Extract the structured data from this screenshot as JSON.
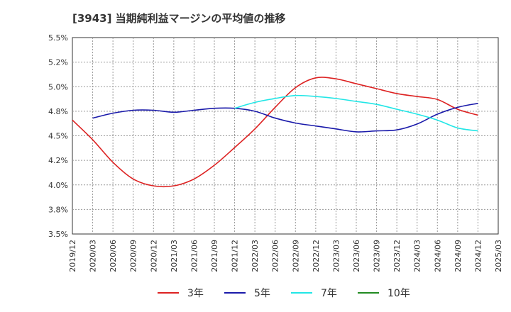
{
  "chart_data": {
    "type": "line",
    "title": "[3943]  当期純利益マージンの平均値の推移",
    "xlabel": "",
    "ylabel": "",
    "x_ticks": [
      "2019/12",
      "2020/03",
      "2020/06",
      "2020/09",
      "2020/12",
      "2021/03",
      "2021/06",
      "2021/09",
      "2021/12",
      "2022/03",
      "2022/06",
      "2022/09",
      "2022/12",
      "2023/03",
      "2023/06",
      "2023/09",
      "2023/12",
      "2024/03",
      "2024/06",
      "2024/09",
      "2024/12",
      "2025/03"
    ],
    "y_ticks": [
      "3.5%",
      "3.8%",
      "4.0%",
      "4.2%",
      "4.5%",
      "4.8%",
      "5.0%",
      "5.2%",
      "5.5%"
    ],
    "ylim": [
      3.5,
      5.5
    ],
    "grid": true,
    "legend_position": "bottom",
    "series": [
      {
        "name": "3年",
        "color": "#dd2222",
        "x": [
          "2019/12",
          "2020/03",
          "2020/06",
          "2020/09",
          "2020/12",
          "2021/03",
          "2021/06",
          "2021/09",
          "2021/12",
          "2022/03",
          "2022/06",
          "2022/09",
          "2022/12",
          "2023/03",
          "2023/06",
          "2023/09",
          "2023/12",
          "2024/03",
          "2024/06",
          "2024/09",
          "2024/12"
        ],
        "values": [
          4.66,
          4.46,
          4.23,
          4.06,
          3.99,
          3.99,
          4.06,
          4.2,
          4.38,
          4.57,
          4.79,
          4.99,
          5.09,
          5.08,
          5.03,
          4.98,
          4.93,
          4.9,
          4.87,
          4.77,
          4.71
        ]
      },
      {
        "name": "5年",
        "color": "#1a1aaa",
        "x": [
          "2020/03",
          "2020/06",
          "2020/09",
          "2020/12",
          "2021/03",
          "2021/06",
          "2021/09",
          "2021/12",
          "2022/03",
          "2022/06",
          "2022/09",
          "2022/12",
          "2023/03",
          "2023/06",
          "2023/09",
          "2023/12",
          "2024/03",
          "2024/06",
          "2024/09",
          "2024/12"
        ],
        "values": [
          4.68,
          4.73,
          4.76,
          4.76,
          4.74,
          4.76,
          4.78,
          4.78,
          4.75,
          4.68,
          4.63,
          4.6,
          4.57,
          4.54,
          4.55,
          4.56,
          4.62,
          4.72,
          4.79,
          4.83
        ]
      },
      {
        "name": "7年",
        "color": "#22e6e6",
        "x": [
          "2021/12",
          "2022/03",
          "2022/06",
          "2022/09",
          "2022/12",
          "2023/03",
          "2023/06",
          "2023/09",
          "2023/12",
          "2024/03",
          "2024/06",
          "2024/09",
          "2024/12"
        ],
        "values": [
          4.78,
          4.84,
          4.88,
          4.91,
          4.9,
          4.88,
          4.85,
          4.82,
          4.77,
          4.72,
          4.66,
          4.58,
          4.55
        ]
      },
      {
        "name": "10年",
        "color": "#228b22",
        "x": [],
        "values": []
      }
    ]
  }
}
